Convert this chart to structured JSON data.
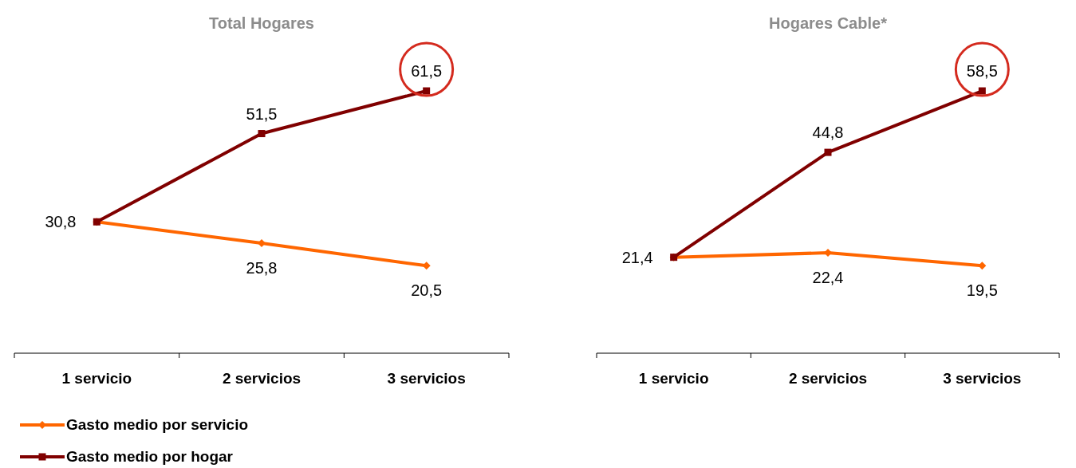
{
  "chart_data": [
    {
      "type": "line",
      "title": "Total Hogares",
      "categories": [
        "1 servicio",
        "2 servicios",
        "3 servicios"
      ],
      "legend": "bottom",
      "data_labels": true,
      "series": [
        {
          "name": "Gasto medio por servicio",
          "color": "#ff6600",
          "marker": "diamond",
          "values": [
            30.8,
            25.8,
            20.5
          ],
          "value_labels": [
            "30,8",
            "25,8",
            "20,5"
          ]
        },
        {
          "name": "Gasto medio por hogar",
          "color": "#800000",
          "marker": "square",
          "values": [
            30.8,
            51.5,
            61.5
          ],
          "value_labels": [
            null,
            "51,5",
            "61,5"
          ]
        }
      ]
    },
    {
      "type": "line",
      "title": "Hogares Cable*",
      "categories": [
        "1 servicio",
        "2 servicios",
        "3 servicios"
      ],
      "legend": false,
      "data_labels": true,
      "series": [
        {
          "color": "#ff6600",
          "marker": "diamond",
          "values": [
            21.4,
            22.4,
            19.5
          ],
          "value_labels": [
            "21,4",
            "22,4",
            "19,5"
          ]
        },
        {
          "color": "#800000",
          "marker": "square",
          "values": [
            21.4,
            44.8,
            58.5
          ],
          "value_labels": [
            null,
            "44,8",
            "58,5"
          ]
        }
      ]
    }
  ]
}
